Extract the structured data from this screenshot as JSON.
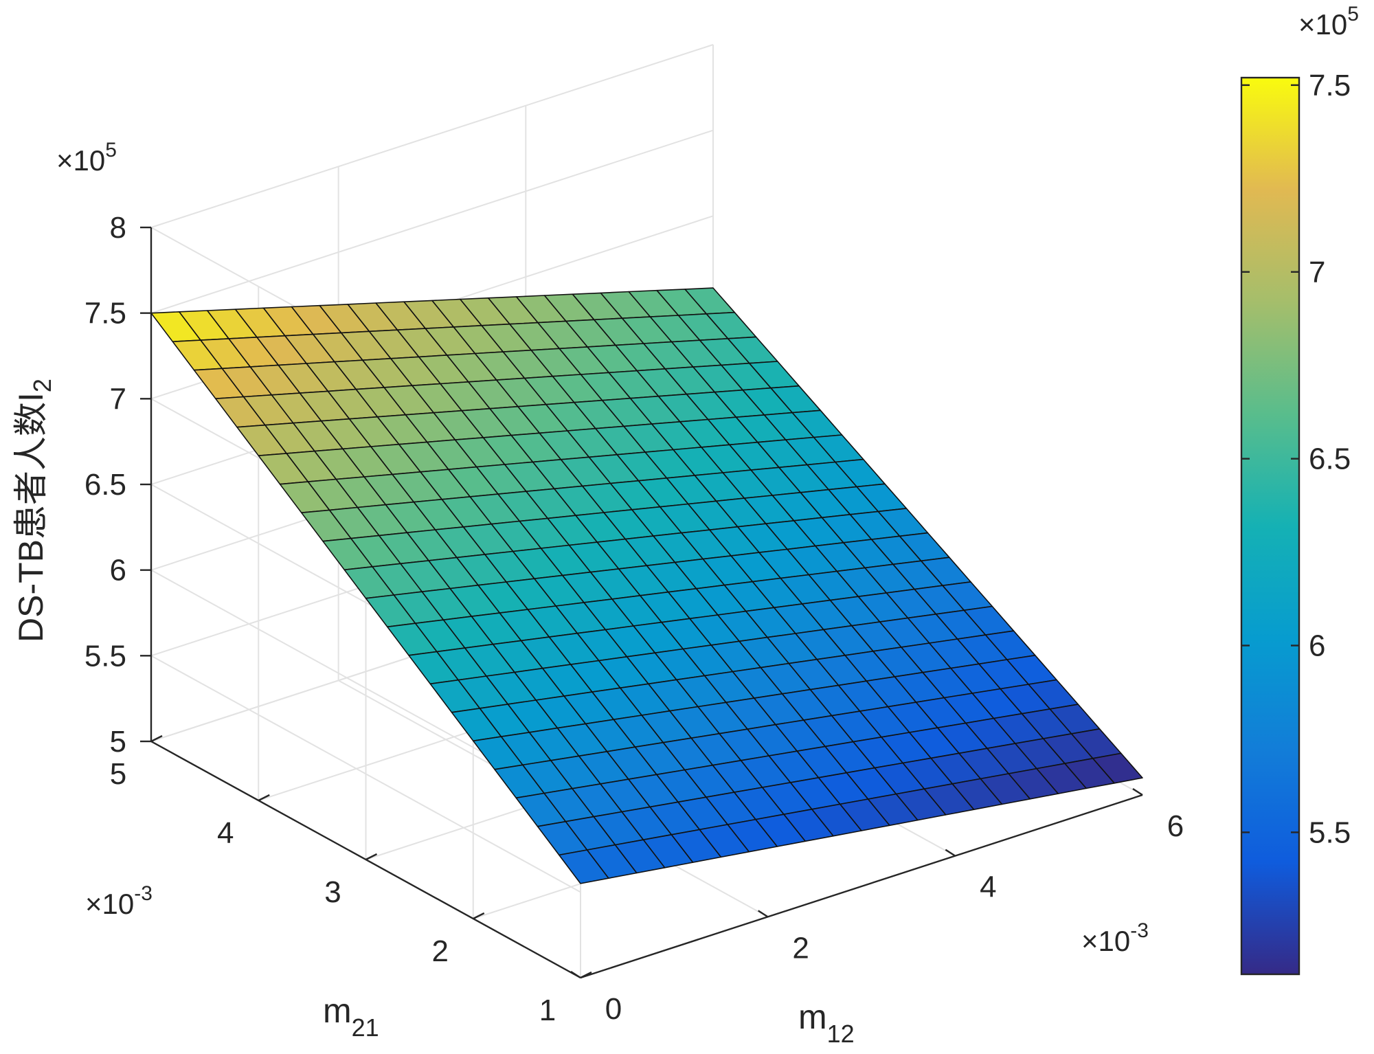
{
  "chart_data": {
    "type": "surface3d",
    "zlabel": "DS-TB患者人数I",
    "zlabel_sub": "2",
    "xlabel": "m",
    "xlabel_sub": "12",
    "ylabel": "m",
    "ylabel_sub": "21",
    "x_multiplier": "×10",
    "x_multiplier_exp": "-3",
    "y_multiplier": "×10",
    "y_multiplier_exp": "-3",
    "z_multiplier": "×10",
    "z_multiplier_exp": "5",
    "xlim": [
      0,
      6
    ],
    "ylim": [
      1,
      5
    ],
    "zlim": [
      5,
      8
    ],
    "xticks": [
      "0",
      "2",
      "4",
      "6"
    ],
    "yticks": [
      "1",
      "2",
      "3",
      "4",
      "5"
    ],
    "zticks": [
      "5",
      "5.5",
      "6",
      "6.5",
      "7",
      "7.5",
      "8"
    ],
    "x_data_range": [
      0,
      6
    ],
    "y_data_range": [
      1,
      5
    ],
    "grid_size": [
      21,
      21
    ],
    "corner_values": {
      "x0_y1": 5.55,
      "x6_y1": 5.1,
      "x0_y5": 7.5,
      "x6_y5": 6.58
    },
    "colormap": "parula",
    "colorbar": {
      "range": [
        5.12,
        7.52
      ],
      "ticks": [
        "5.5",
        "6",
        "6.5",
        "7",
        "7.5"
      ],
      "multiplier": "×10",
      "multiplier_exp": "5"
    },
    "grid": true
  }
}
